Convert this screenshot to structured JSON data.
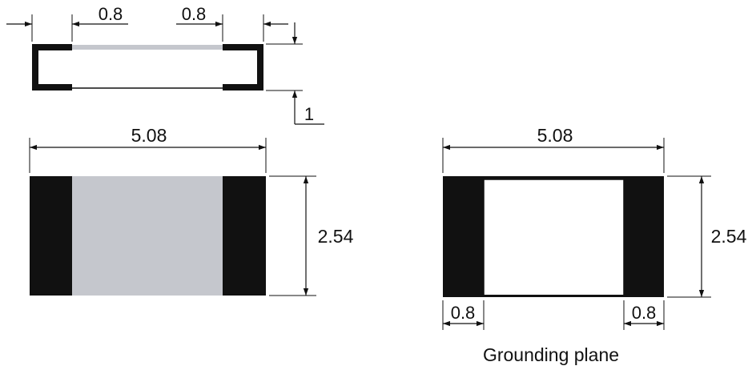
{
  "colors": {
    "terminal": "#111111",
    "resistive_layer": "#c5c7cd",
    "background": "#ffffff",
    "line": "#111111"
  },
  "side_view": {
    "terminal_width_left": "0.8",
    "terminal_width_right": "0.8",
    "thickness": "1"
  },
  "top_view": {
    "length": "5.08",
    "width": "2.54"
  },
  "grounding_plane": {
    "length": "5.08",
    "width": "2.54",
    "pad_left": "0.8",
    "pad_right": "0.8",
    "caption": "Grounding plane"
  }
}
